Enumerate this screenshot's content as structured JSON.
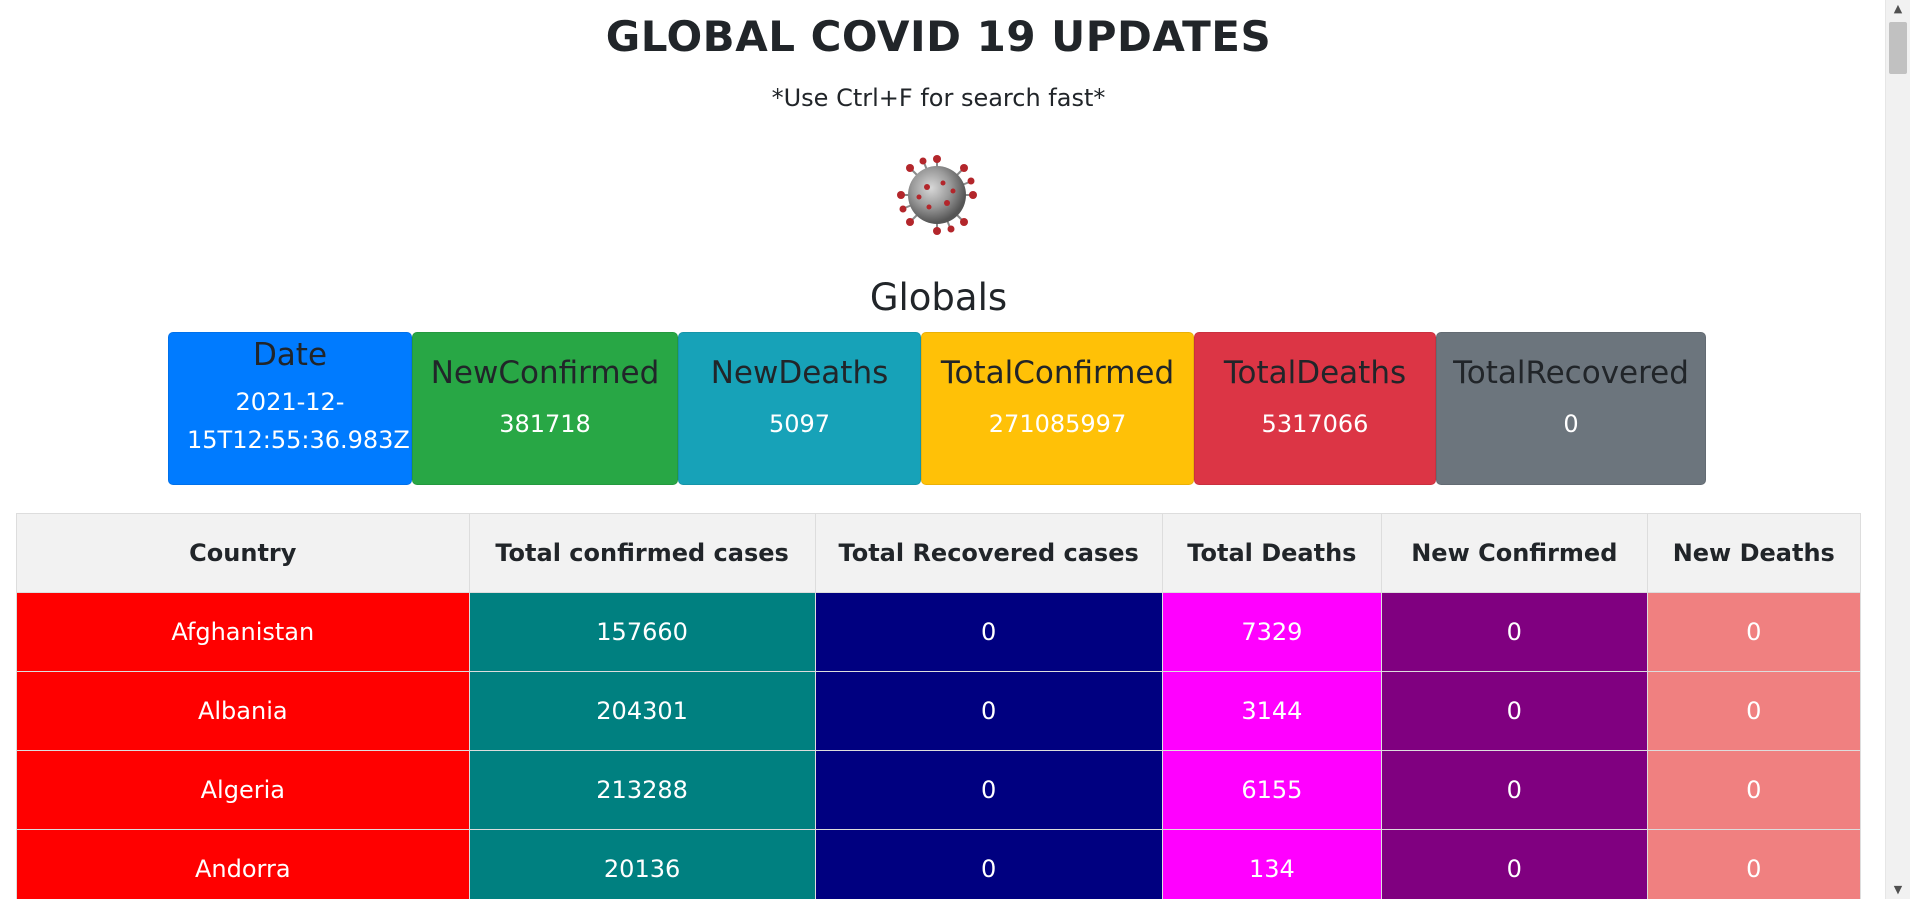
{
  "header": {
    "title": "GLOBAL COVID 19 UPDATES",
    "subtitle": "*Use Ctrl+F for search fast*"
  },
  "globals": {
    "heading": "Globals",
    "cards": [
      {
        "title": "Date",
        "value": "2021-12-15T12:55:36.983Z",
        "color": "#007bff"
      },
      {
        "title": "NewConfirmed",
        "value": "381718",
        "color": "#28a745"
      },
      {
        "title": "NewDeaths",
        "value": "5097",
        "color": "#17a2b8"
      },
      {
        "title": "TotalConfirmed",
        "value": "271085997",
        "color": "#ffc107"
      },
      {
        "title": "TotalDeaths",
        "value": "5317066",
        "color": "#dc3545"
      },
      {
        "title": "TotalRecovered",
        "value": "0",
        "color": "#6c757d"
      }
    ]
  },
  "table": {
    "headers": [
      "Country",
      "Total confirmed cases",
      "Total Recovered cases",
      "Total Deaths",
      "New Confirmed",
      "New Deaths"
    ],
    "column_colors": [
      "#ff0000",
      "#008080",
      "#000080",
      "#ff00ff",
      "#800080",
      "#f08080"
    ],
    "rows": [
      [
        "Afghanistan",
        "157660",
        "0",
        "7329",
        "0",
        "0"
      ],
      [
        "Albania",
        "204301",
        "0",
        "3144",
        "0",
        "0"
      ],
      [
        "Algeria",
        "213288",
        "0",
        "6155",
        "0",
        "0"
      ],
      [
        "Andorra",
        "20136",
        "0",
        "134",
        "0",
        "0"
      ]
    ]
  },
  "scrollbar": {
    "up_icon": "arrow-up-icon",
    "down_icon": "arrow-down-icon"
  }
}
